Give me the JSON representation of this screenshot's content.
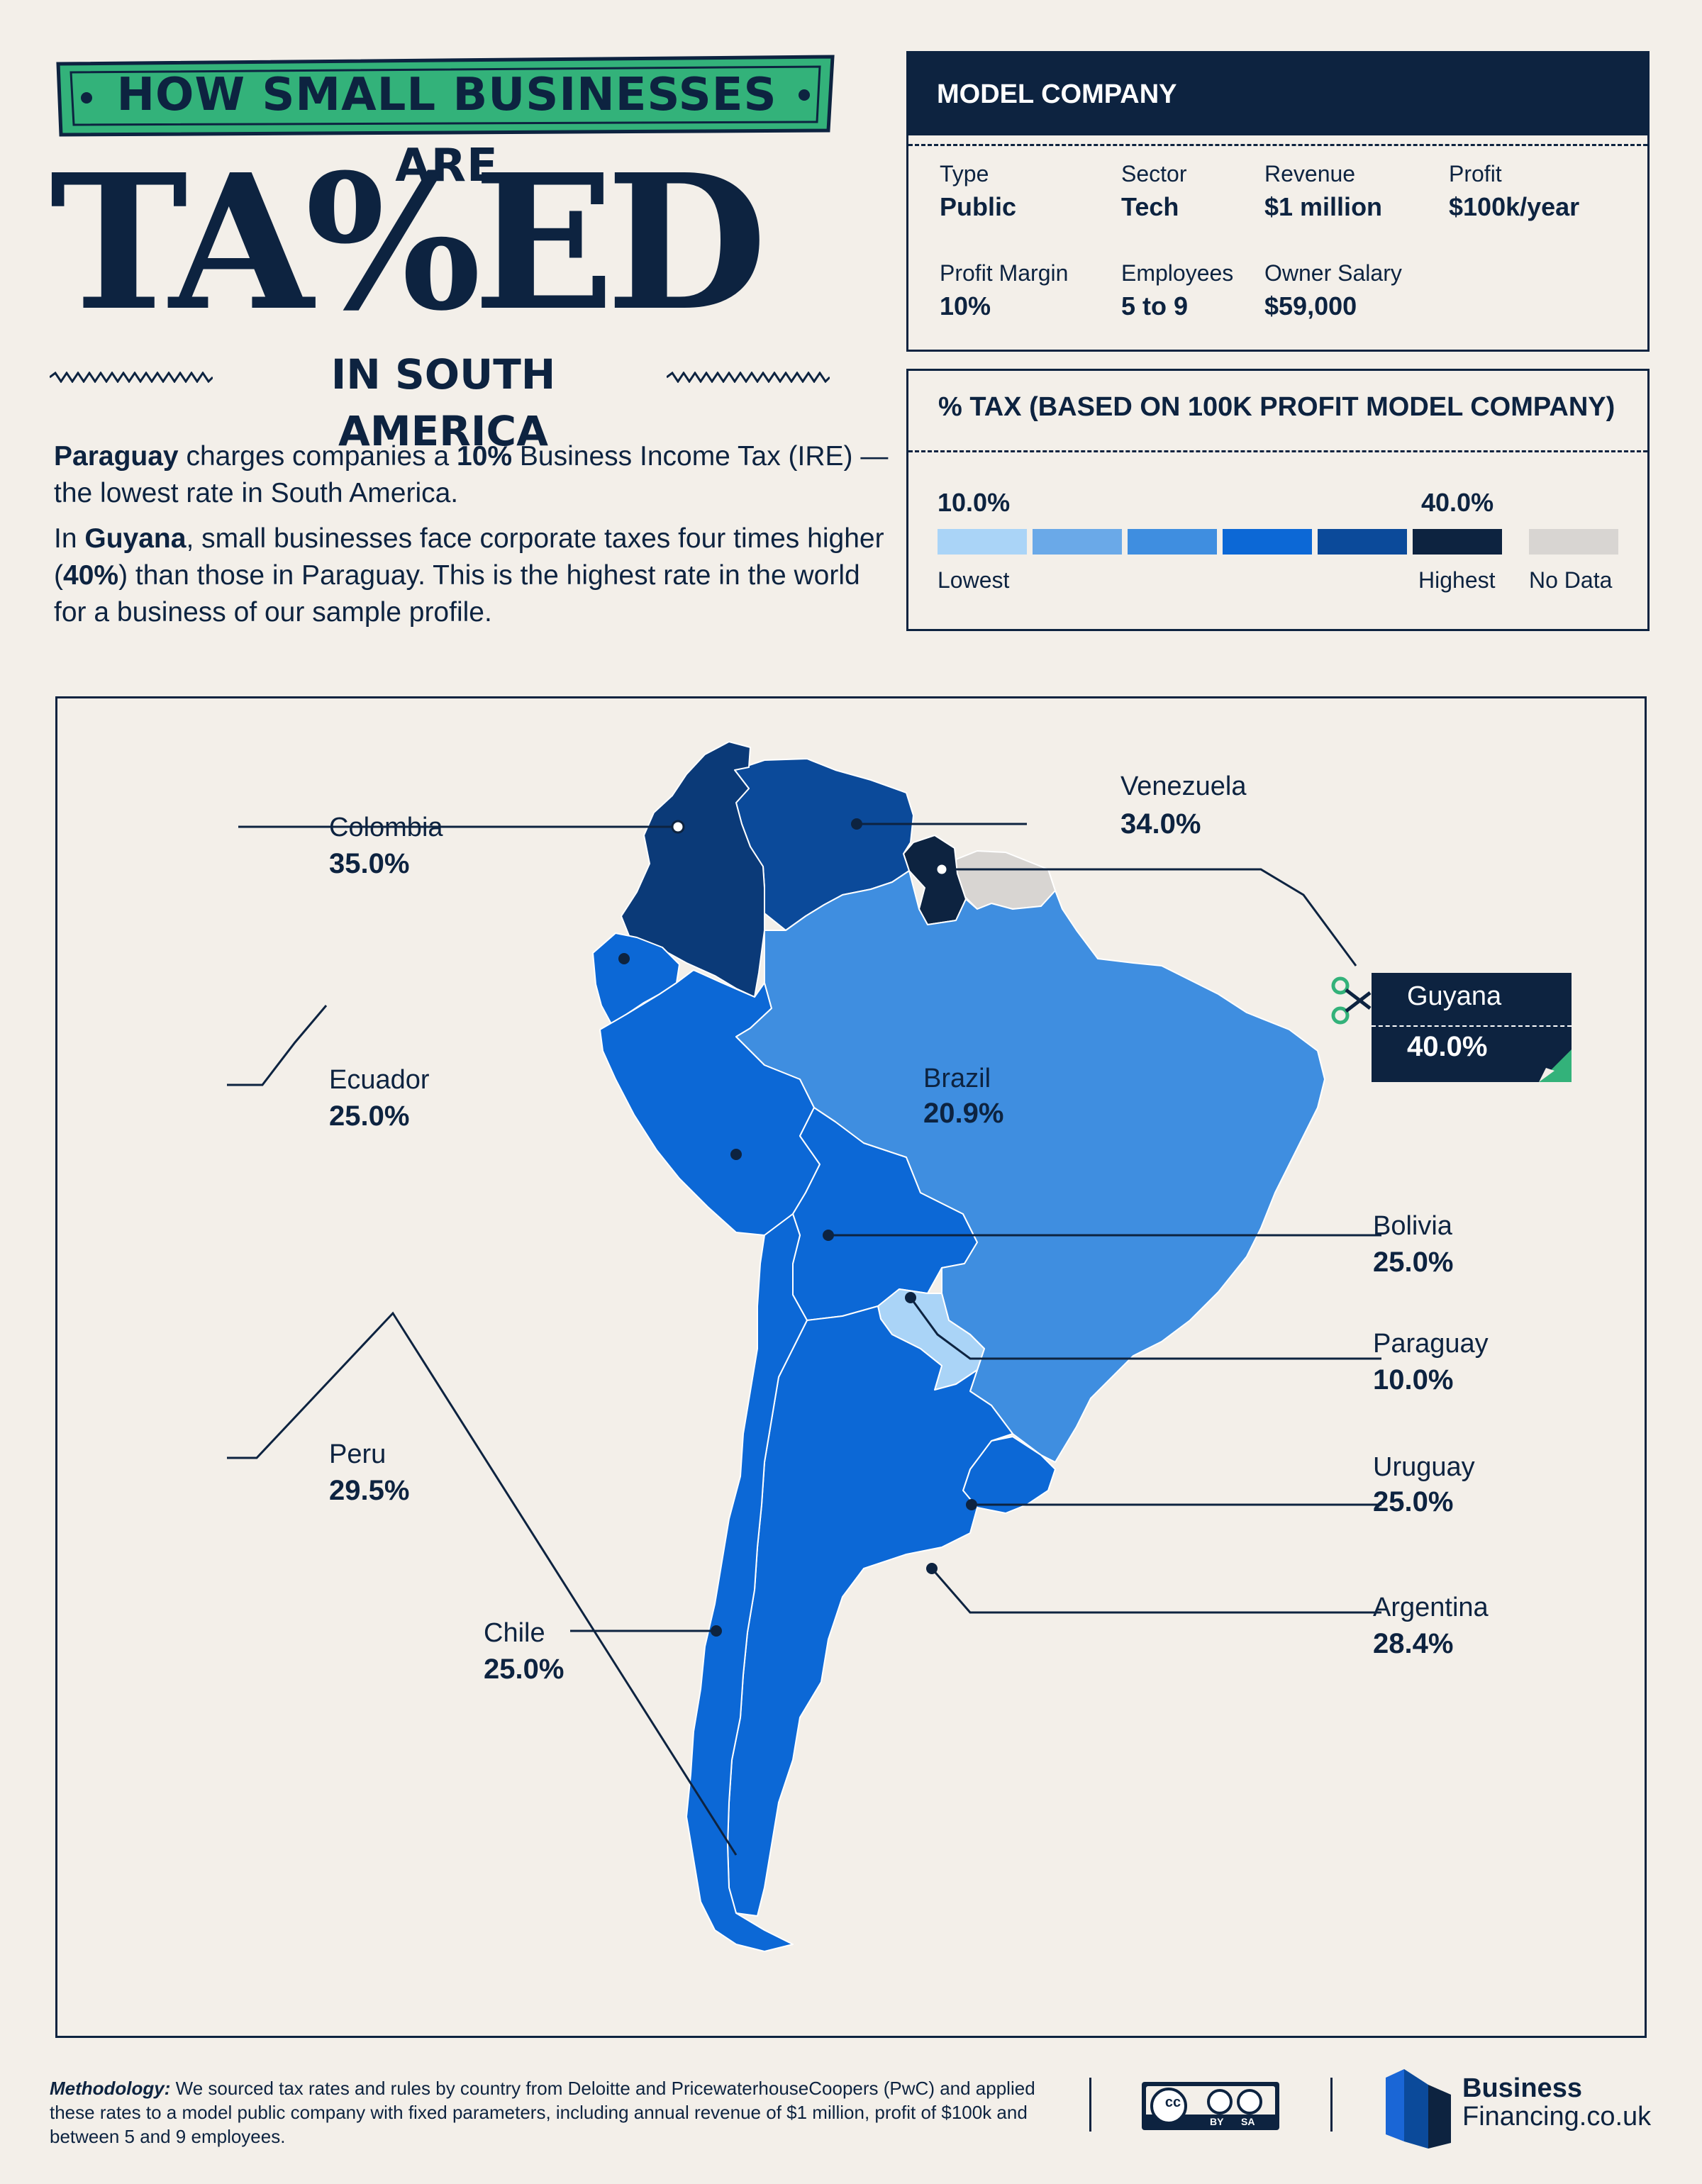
{
  "header": {
    "banner": "HOW SMALL BUSINESSES ARE",
    "title": "TA%ED",
    "subtitle": "IN SOUTH AMERICA"
  },
  "intro": {
    "p1_a": "Paraguay",
    "p1_b": " charges companies a ",
    "p1_c": "10%",
    "p1_d": " Business Income Tax (IRE) — the lowest rate in South America.",
    "p2_a": "In ",
    "p2_b": "Guyana",
    "p2_c": ", small businesses face corporate taxes four times higher (",
    "p2_d": "40%",
    "p2_e": ") than those in Paraguay. This is the highest rate in the world for a business of our sample profile."
  },
  "model_company": {
    "heading": "MODEL COMPANY",
    "fields": [
      {
        "label": "Type",
        "value": "Public"
      },
      {
        "label": "Sector",
        "value": "Tech"
      },
      {
        "label": "Revenue",
        "value": "$1 million"
      },
      {
        "label": "Profit",
        "value": "$100k/year"
      },
      {
        "label": "Profit Margin",
        "value": "10%"
      },
      {
        "label": "Employees",
        "value": "5 to 9"
      },
      {
        "label": "Owner Salary",
        "value": "$59,000"
      }
    ]
  },
  "legend": {
    "heading": "% TAX (BASED ON 100K PROFIT MODEL COMPANY)",
    "low_value": "10.0%",
    "high_value": "40.0%",
    "low_label": "Lowest",
    "high_label": "Highest",
    "nodata_label": "No Data",
    "swatches": [
      "#aad4f7",
      "#6aa9e8",
      "#3f8ee0",
      "#0c68d6",
      "#0b4a9a",
      "#0d2340"
    ],
    "nodata_color": "#d8d5d2"
  },
  "countries": [
    {
      "name": "Colombia",
      "rate": "35.0%",
      "color": "#0b3a78"
    },
    {
      "name": "Venezuela",
      "rate": "34.0%",
      "color": "#0b4a9a"
    },
    {
      "name": "Guyana",
      "rate": "40.0%",
      "color": "#0d2340"
    },
    {
      "name": "Ecuador",
      "rate": "25.0%",
      "color": "#0c68d6"
    },
    {
      "name": "Brazil",
      "rate": "20.9%",
      "color": "#3f8ee0"
    },
    {
      "name": "Bolivia",
      "rate": "25.0%",
      "color": "#0c68d6"
    },
    {
      "name": "Paraguay",
      "rate": "10.0%",
      "color": "#aad4f7"
    },
    {
      "name": "Peru",
      "rate": "29.5%",
      "color": "#0c68d6"
    },
    {
      "name": "Uruguay",
      "rate": "25.0%",
      "color": "#0c68d6"
    },
    {
      "name": "Argentina",
      "rate": "28.4%",
      "color": "#0c68d6"
    },
    {
      "name": "Chile",
      "rate": "25.0%",
      "color": "#0c68d6"
    }
  ],
  "footer": {
    "method_label": "Methodology:",
    "method_text": " We sourced tax rates and rules by country from Deloitte and PricewaterhouseCoopers (PwC) and applied these rates to a model public company with fixed parameters, including annual revenue of $1 million, profit of $100k and between 5 and 9 employees.",
    "cc_by": "BY",
    "cc_sa": "SA",
    "brand_line1": "Business",
    "brand_line2": "Financing.co.uk"
  }
}
